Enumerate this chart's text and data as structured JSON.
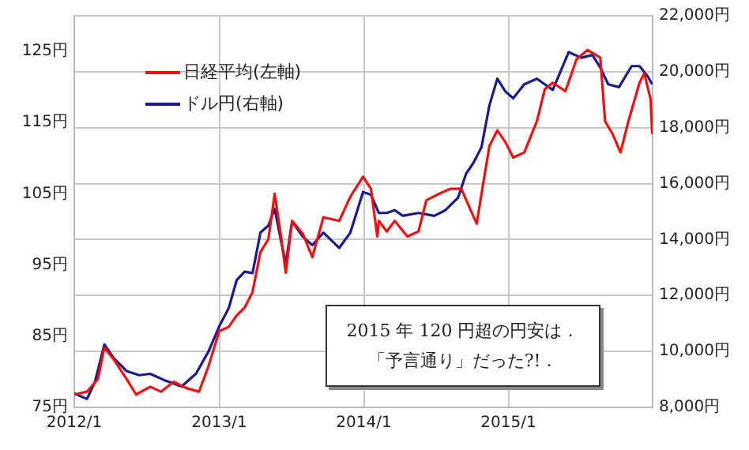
{
  "chart_data": {
    "type": "line",
    "annotations": [
      "2015 年 120 円超の円安は．",
      "「予言通り」だった?!．"
    ],
    "series": [
      {
        "name": "日経平均(左軸)",
        "color": "#ee1111",
        "axis": "y",
        "x": [
          "2012-01-01",
          "2012-02-02",
          "2012-03-01",
          "2012-03-17",
          "2012-04-10",
          "2012-05-12",
          "2012-06-05",
          "2012-07-11",
          "2012-08-07",
          "2012-09-08",
          "2012-10-10",
          "2012-11-11",
          "2012-12-05",
          "2013-01-01",
          "2013-01-25",
          "2013-02-14",
          "2013-03-06",
          "2013-03-26",
          "2013-04-15",
          "2013-05-05",
          "2013-05-21",
          "2013-06-06",
          "2013-06-18",
          "2013-07-04",
          "2013-07-31",
          "2013-08-24",
          "2013-09-21",
          "2013-10-31",
          "2013-11-28",
          "2013-12-30",
          "2014-01-19",
          "2014-02-04",
          "2014-02-08",
          "2014-02-28",
          "2014-03-20",
          "2014-04-21",
          "2014-05-19",
          "2014-06-08",
          "2014-07-10",
          "2014-08-07",
          "2014-09-04",
          "2014-09-27",
          "2014-10-13",
          "2014-10-29",
          "2014-11-14",
          "2014-12-04",
          "2014-12-24",
          "2015-01-13",
          "2015-02-10",
          "2015-03-14",
          "2015-04-03",
          "2015-04-23",
          "2015-05-25",
          "2015-06-22",
          "2015-07-20",
          "2015-08-21",
          "2015-09-02",
          "2015-09-21",
          "2015-10-11",
          "2015-10-31",
          "2015-11-28",
          "2015-12-10",
          "2015-12-26",
          "2015-12-30"
        ],
        "values": [
          76.8,
          77.2,
          79.0,
          83.4,
          81.7,
          79.0,
          76.8,
          77.9,
          77.2,
          78.6,
          77.7,
          77.2,
          80.8,
          85.7,
          86.3,
          87.9,
          89.0,
          91.2,
          96.8,
          98.6,
          105.0,
          99.0,
          93.9,
          101.2,
          99.4,
          96.1,
          101.7,
          101.2,
          104.6,
          107.4,
          105.7,
          99.0,
          101.2,
          99.7,
          101.2,
          99.0,
          99.7,
          104.1,
          105.0,
          105.7,
          105.7,
          102.8,
          100.8,
          106.3,
          111.7,
          113.9,
          112.3,
          110.1,
          110.8,
          115.2,
          119.7,
          120.6,
          119.4,
          123.9,
          125.2,
          124.1,
          115.2,
          113.4,
          110.8,
          115.2,
          120.6,
          121.9,
          118.3,
          113.4
        ]
      },
      {
        "name": "ドル円(右軸)",
        "color": "#1a1a8a",
        "axis": "y2",
        "x": [
          "2012-01-01",
          "2012-02-02",
          "2012-02-22",
          "2012-03-17",
          "2012-04-10",
          "2012-05-12",
          "2012-06-13",
          "2012-07-11",
          "2012-08-19",
          "2012-09-28",
          "2012-11-03",
          "2012-12-05",
          "2013-01-01",
          "2013-01-25",
          "2013-02-14",
          "2013-03-06",
          "2013-03-26",
          "2013-04-15",
          "2013-05-05",
          "2013-05-21",
          "2013-06-06",
          "2013-06-18",
          "2013-07-04",
          "2013-07-31",
          "2013-08-24",
          "2013-09-21",
          "2013-10-31",
          "2013-11-28",
          "2013-12-30",
          "2014-01-19",
          "2014-02-08",
          "2014-02-28",
          "2014-03-20",
          "2014-04-09",
          "2014-05-19",
          "2014-06-28",
          "2014-07-26",
          "2014-08-27",
          "2014-09-16",
          "2014-10-05",
          "2014-10-25",
          "2014-11-14",
          "2014-12-04",
          "2014-12-24",
          "2015-01-13",
          "2015-02-10",
          "2015-03-14",
          "2015-04-23",
          "2015-06-02",
          "2015-07-04",
          "2015-08-01",
          "2015-08-21",
          "2015-09-10",
          "2015-10-07",
          "2015-11-08",
          "2015-11-28",
          "2015-12-18",
          "2015-12-30"
        ],
        "values": [
          8500,
          8300,
          8900,
          10250,
          9750,
          9300,
          9150,
          9200,
          8950,
          8750,
          9200,
          10000,
          10900,
          11550,
          12550,
          12850,
          12800,
          14250,
          14500,
          15100,
          13950,
          13150,
          14650,
          14100,
          13800,
          14250,
          13700,
          14250,
          15700,
          15600,
          14950,
          14950,
          15050,
          14850,
          14950,
          14850,
          15050,
          15500,
          16350,
          16750,
          17300,
          18800,
          19750,
          19300,
          19050,
          19550,
          19750,
          19350,
          20700,
          20500,
          20600,
          20150,
          19550,
          19450,
          20200,
          20200,
          19850,
          19550
        ]
      }
    ],
    "xlim": [
      "2012-01-01",
      "2015-12-31"
    ],
    "xticks": [
      {
        "value": "2012-01-01",
        "label": "2012/1"
      },
      {
        "value": "2013-01-01",
        "label": "2013/1"
      },
      {
        "value": "2014-01-01",
        "label": "2014/1"
      },
      {
        "value": "2015-01-01",
        "label": "2015/1"
      }
    ],
    "ylim": [
      75,
      130
    ],
    "yticks": [
      {
        "value": 75,
        "label": "75円"
      },
      {
        "value": 85,
        "label": "85円"
      },
      {
        "value": 95,
        "label": "95円"
      },
      {
        "value": 105,
        "label": "105円"
      },
      {
        "value": 115,
        "label": "115円"
      },
      {
        "value": 125,
        "label": "125円"
      }
    ],
    "y2lim": [
      8000,
      22000
    ],
    "y2ticks": [
      {
        "value": 8000,
        "label": "8,000円"
      },
      {
        "value": 10000,
        "label": "10,000円"
      },
      {
        "value": 12000,
        "label": "12,000円"
      },
      {
        "value": 14000,
        "label": "14,000円"
      },
      {
        "value": 16000,
        "label": "16,000円"
      },
      {
        "value": 18000,
        "label": "18,000円"
      },
      {
        "value": 20000,
        "label": "20,000円"
      },
      {
        "value": 22000,
        "label": "22,000円"
      }
    ],
    "grid": true,
    "legend": "top left",
    "marker": "none",
    "line_style": "solid"
  }
}
